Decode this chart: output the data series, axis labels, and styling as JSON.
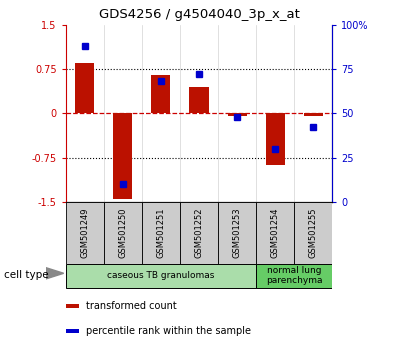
{
  "title": "GDS4256 / g4504040_3p_x_at",
  "samples": [
    "GSM501249",
    "GSM501250",
    "GSM501251",
    "GSM501252",
    "GSM501253",
    "GSM501254",
    "GSM501255"
  ],
  "transformed_count": [
    0.85,
    -1.45,
    0.65,
    0.45,
    -0.05,
    -0.88,
    -0.05
  ],
  "percentile_rank": [
    88,
    10,
    68,
    72,
    48,
    30,
    42
  ],
  "ylim_left": [
    -1.5,
    1.5
  ],
  "ylim_right": [
    0,
    100
  ],
  "yticks_left": [
    -1.5,
    -0.75,
    0,
    0.75,
    1.5
  ],
  "yticks_right": [
    0,
    25,
    50,
    75,
    100
  ],
  "ytick_labels_left": [
    "-1.5",
    "-0.75",
    "0",
    "0.75",
    "1.5"
  ],
  "ytick_labels_right": [
    "0",
    "25",
    "50",
    "75",
    "100%"
  ],
  "hlines_dotted": [
    0.75,
    -0.75
  ],
  "hline_zero_color": "#cc0000",
  "bar_color": "#bb1100",
  "dot_color": "#0000cc",
  "cell_types": [
    {
      "label": "caseous TB granulomas",
      "indices": [
        0,
        1,
        2,
        3,
        4
      ],
      "color": "#aaddaa"
    },
    {
      "label": "normal lung\nparenchyma",
      "indices": [
        5,
        6
      ],
      "color": "#66cc66"
    }
  ],
  "legend_items": [
    {
      "color": "#bb1100",
      "label": "transformed count"
    },
    {
      "color": "#0000cc",
      "label": "percentile rank within the sample"
    }
  ],
  "bar_width": 0.5,
  "cell_type_label": "cell type",
  "background_color": "#ffffff",
  "plot_bg_color": "#ffffff",
  "sample_box_color": "#cccccc"
}
